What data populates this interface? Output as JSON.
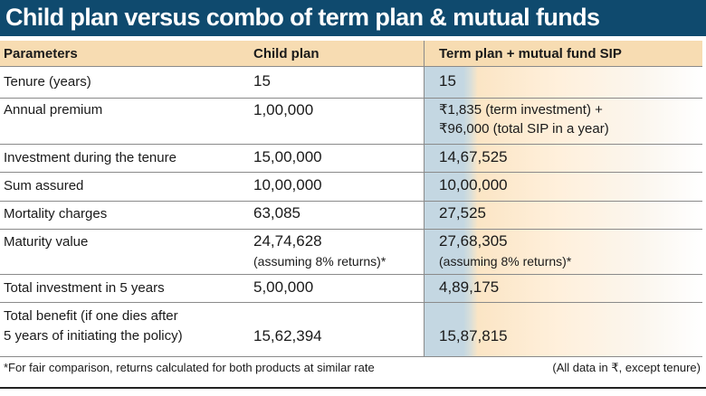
{
  "title": "Child plan versus combo of term plan & mutual funds",
  "columns": {
    "parameters": "Parameters",
    "child_plan": "Child plan",
    "term_plan": "Term plan + mutual fund SIP"
  },
  "rows": [
    {
      "parameter": "Tenure (years)",
      "child": "15",
      "term": "15"
    },
    {
      "parameter": "Annual premium",
      "child": "1,00,000",
      "term": "₹1,835 (term investment) +",
      "term_line2": "₹96,000 (total SIP in a year)"
    },
    {
      "parameter": "Investment during the tenure",
      "child": "15,00,000",
      "term": "14,67,525"
    },
    {
      "parameter": "Sum assured",
      "child": "10,00,000",
      "term": "10,00,000"
    },
    {
      "parameter": "Mortality charges",
      "child": "63,085",
      "term": "27,525"
    },
    {
      "parameter": "Maturity value",
      "child": "24,74,628",
      "child_note": "(assuming 8% returns)*",
      "term": "27,68,305",
      "term_note": "(assuming 8% returns)*"
    },
    {
      "parameter": "Total investment in 5 years",
      "child": "5,00,000",
      "term": "4,89,175"
    },
    {
      "parameter": "Total benefit (if one dies after",
      "parameter_line2": "5 years of initiating the policy)",
      "child": "15,62,394",
      "term": "15,87,815"
    }
  ],
  "footnote": "*For fair comparison, returns calculated for both products at similar rate",
  "data_note": "(All data in ₹, except tenure)",
  "colors": {
    "title_bar": "#0f4a6e",
    "header_bg": "#f7dcb2",
    "highlight_blue": "#c4d7e2",
    "highlight_peach": "#fbe5c5"
  }
}
